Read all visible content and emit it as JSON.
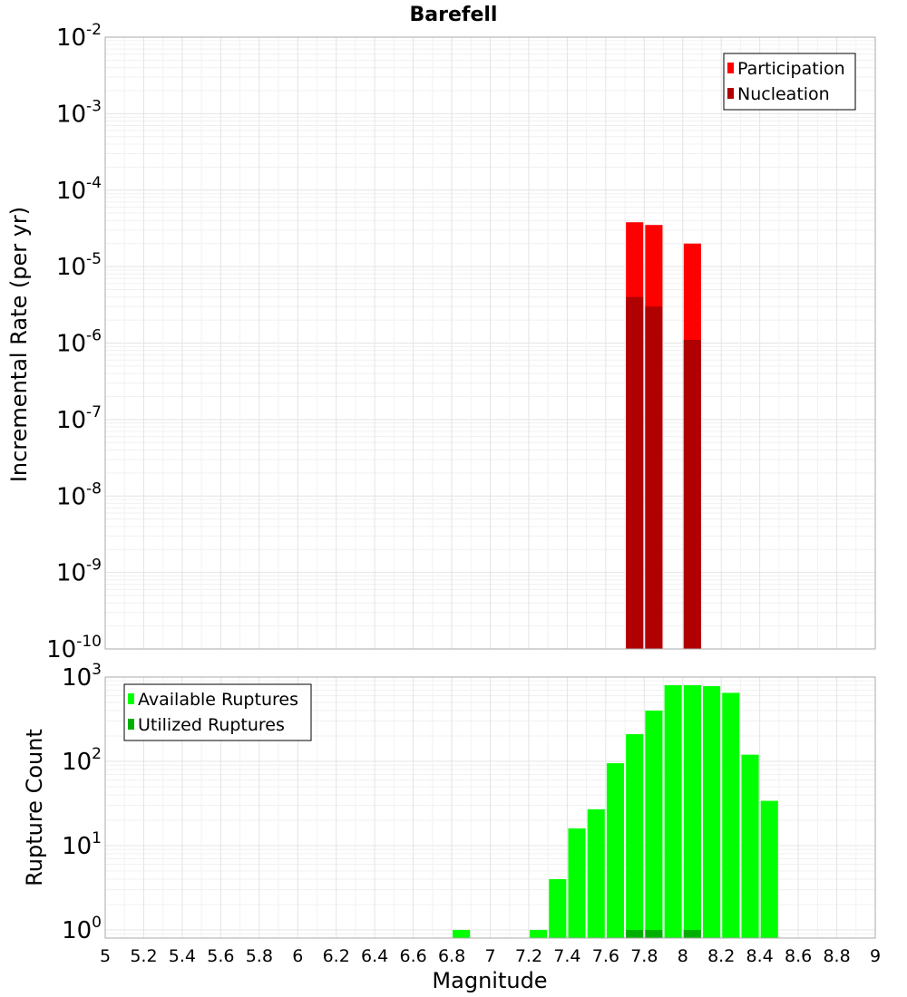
{
  "title": "Barefell",
  "chart_data": [
    {
      "type": "bar",
      "ylabel": "Incremental Rate (per yr)",
      "yscale": "log",
      "ylim": [
        1e-10,
        0.01
      ],
      "xlim": [
        5,
        9
      ],
      "bar_width": 0.09,
      "grid": true,
      "legend_position": "top-right",
      "series": [
        {
          "name": "Participation",
          "color": "#ff0000",
          "x": [
            7.75,
            7.85,
            8.05
          ],
          "values": [
            3.8e-05,
            3.5e-05,
            2e-05
          ]
        },
        {
          "name": "Nucleation",
          "color": "#b00000",
          "x": [
            7.75,
            7.85,
            8.05
          ],
          "values": [
            4e-06,
            3e-06,
            1.1e-06
          ]
        }
      ]
    },
    {
      "type": "bar",
      "xlabel": "Magnitude",
      "ylabel": "Rupture Count",
      "yscale": "log",
      "ylim": [
        0.8,
        1000
      ],
      "xlim": [
        5,
        9
      ],
      "bar_width": 0.09,
      "grid": true,
      "legend_position": "top-left",
      "xticks": [
        "5",
        "5.2",
        "5.4",
        "5.6",
        "5.8",
        "6",
        "6.2",
        "6.4",
        "6.6",
        "6.8",
        "7",
        "7.2",
        "7.4",
        "7.6",
        "7.8",
        "8",
        "8.2",
        "8.4",
        "8.6",
        "8.8",
        "9"
      ],
      "series": [
        {
          "name": "Available Ruptures",
          "color": "#00ff00",
          "x": [
            6.85,
            7.25,
            7.35,
            7.45,
            7.55,
            7.65,
            7.75,
            7.85,
            7.95,
            8.05,
            8.15,
            8.25,
            8.35,
            8.45
          ],
          "values": [
            1,
            1,
            4,
            16,
            27,
            95,
            210,
            400,
            800,
            800,
            780,
            650,
            120,
            34
          ]
        },
        {
          "name": "Utilized Ruptures",
          "color": "#00b000",
          "x": [
            7.75,
            7.85,
            8.05
          ],
          "values": [
            1,
            1,
            1
          ]
        }
      ]
    }
  ]
}
